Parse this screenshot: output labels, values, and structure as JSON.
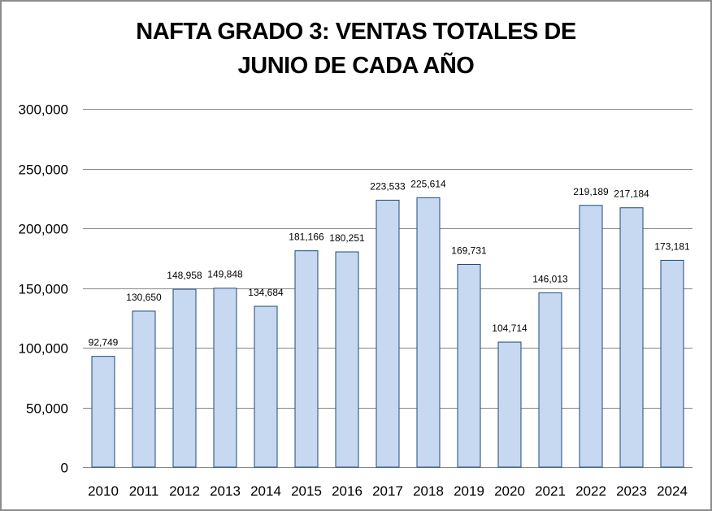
{
  "chart_data": {
    "type": "bar",
    "title_line1": "NAFTA GRADO 3: VENTAS TOTALES DE",
    "title_line2": "JUNIO DE CADA AÑO",
    "xlabel": "",
    "ylabel": "",
    "categories": [
      "2010",
      "2011",
      "2012",
      "2013",
      "2014",
      "2015",
      "2016",
      "2017",
      "2018",
      "2019",
      "2020",
      "2021",
      "2022",
      "2023",
      "2024"
    ],
    "values": [
      92749,
      130650,
      148958,
      149848,
      134684,
      181166,
      180251,
      223533,
      225614,
      169731,
      104714,
      146013,
      219189,
      217184,
      173181
    ],
    "data_labels": [
      "92,749",
      "130,650",
      "148,958",
      "149,848",
      "134,684",
      "181,166",
      "180,251",
      "223,533",
      "225,614",
      "169,731",
      "104,714",
      "146,013",
      "219,189",
      "217,184",
      "173,181"
    ],
    "ylim": [
      0,
      300000
    ],
    "yticks": [
      0,
      50000,
      100000,
      150000,
      200000,
      250000,
      300000
    ],
    "ytick_labels": [
      "0",
      "50,000",
      "100,000",
      "150,000",
      "200,000",
      "250,000",
      "300,000"
    ],
    "grid": true,
    "legend": "none",
    "colors": {
      "bar_fill": "#c6d9f1",
      "bar_edge": "#1f497d",
      "grid": "#868686"
    }
  }
}
